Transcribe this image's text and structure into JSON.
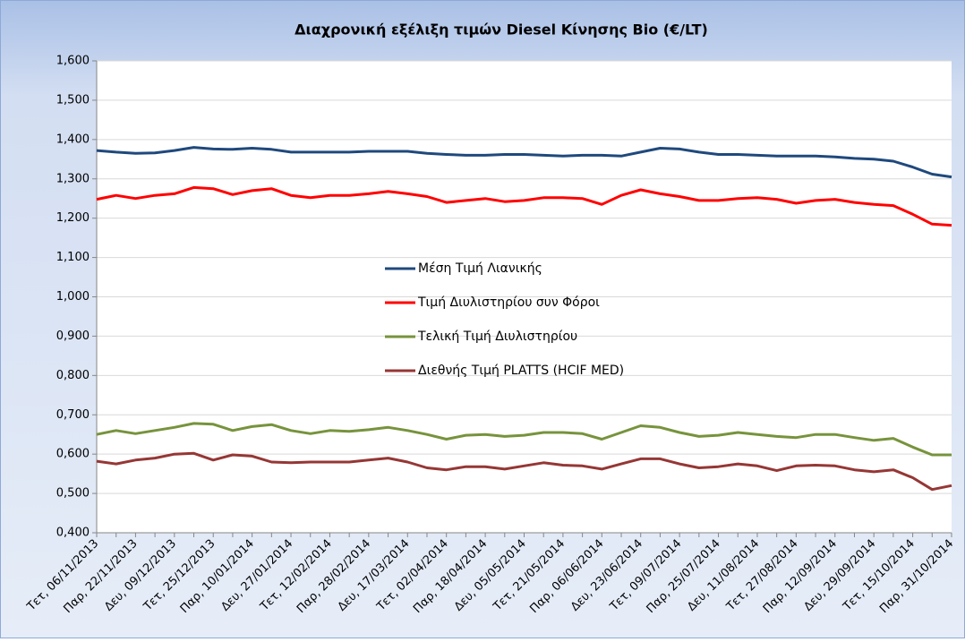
{
  "chart_data": {
    "type": "line",
    "title": "Διαχρονική  εξέλιξη τιμών Diesel Κίνησης Bio (€/LT)",
    "categories": [
      "Τετ, 06/11/2013",
      null,
      "Παρ, 22/11/2013",
      null,
      "Δευ, 09/12/2013",
      null,
      "Τετ, 25/12/2013",
      null,
      "Παρ, 10/01/2014",
      null,
      "Δευ, 27/01/2014",
      null,
      "Τετ, 12/02/2014",
      null,
      "Παρ, 28/02/2014",
      null,
      "Δευ, 17/03/2014",
      null,
      "Τετ, 02/04/2014",
      null,
      "Παρ, 18/04/2014",
      null,
      "Δευ, 05/05/2014",
      null,
      "Τετ, 21/05/2014",
      null,
      "Παρ, 06/06/2014",
      null,
      "Δευ, 23/06/2014",
      null,
      "Τετ, 09/07/2014",
      null,
      "Παρ, 25/07/2014",
      null,
      "Δευ, 11/08/2014",
      null,
      "Τετ, 27/08/2014",
      null,
      "Παρ, 12/09/2014",
      null,
      "Δευ, 29/09/2014",
      null,
      "Τετ, 15/10/2014",
      null,
      "Παρ, 31/10/2014"
    ],
    "series": [
      {
        "name": "Μέση Τιμή Λιανικής",
        "color": "#1f497d",
        "values": [
          1.372,
          1.368,
          1.365,
          1.366,
          1.372,
          1.38,
          1.376,
          1.375,
          1.378,
          1.375,
          1.368,
          1.368,
          1.368,
          1.368,
          1.37,
          1.37,
          1.37,
          1.365,
          1.362,
          1.36,
          1.36,
          1.362,
          1.362,
          1.36,
          1.358,
          1.36,
          1.36,
          1.358,
          1.368,
          1.378,
          1.376,
          1.368,
          1.362,
          1.362,
          1.36,
          1.358,
          1.358,
          1.358,
          1.356,
          1.352,
          1.35,
          1.345,
          1.33,
          1.312,
          1.305
        ]
      },
      {
        "name": "Τιμή Διυλιστηρίου συν Φόροι",
        "color": "#ff0000",
        "values": [
          1.248,
          1.258,
          1.25,
          1.258,
          1.262,
          1.278,
          1.275,
          1.26,
          1.27,
          1.275,
          1.258,
          1.252,
          1.258,
          1.258,
          1.262,
          1.268,
          1.262,
          1.255,
          1.24,
          1.245,
          1.25,
          1.242,
          1.245,
          1.252,
          1.252,
          1.25,
          1.235,
          1.258,
          1.272,
          1.262,
          1.255,
          1.245,
          1.245,
          1.25,
          1.252,
          1.248,
          1.238,
          1.245,
          1.248,
          1.24,
          1.235,
          1.232,
          1.21,
          1.185,
          1.182
        ]
      },
      {
        "name": "Τελική Τιμή Διυλιστηρίου",
        "color": "#77933c",
        "values": [
          0.65,
          0.66,
          0.652,
          0.66,
          0.668,
          0.678,
          0.676,
          0.66,
          0.67,
          0.675,
          0.66,
          0.652,
          0.66,
          0.658,
          0.662,
          0.668,
          0.66,
          0.65,
          0.638,
          0.648,
          0.65,
          0.645,
          0.648,
          0.655,
          0.655,
          0.652,
          0.638,
          0.655,
          0.672,
          0.668,
          0.655,
          0.645,
          0.648,
          0.655,
          0.65,
          0.645,
          0.642,
          0.65,
          0.65,
          0.642,
          0.635,
          0.64,
          0.618,
          0.598,
          0.598
        ]
      },
      {
        "name": "Διεθνής Τιμή PLATTS (HCIF MED)",
        "color": "#953735",
        "values": [
          0.582,
          0.575,
          0.585,
          0.59,
          0.6,
          0.602,
          0.585,
          0.598,
          0.595,
          0.58,
          0.578,
          0.58,
          0.58,
          0.58,
          0.585,
          0.59,
          0.58,
          0.565,
          0.56,
          0.568,
          0.568,
          0.562,
          0.57,
          0.578,
          0.572,
          0.57,
          0.562,
          0.575,
          0.588,
          0.588,
          0.575,
          0.565,
          0.568,
          0.575,
          0.57,
          0.558,
          0.57,
          0.572,
          0.57,
          0.56,
          0.555,
          0.56,
          0.54,
          0.51,
          0.52
        ]
      }
    ],
    "ylim": [
      0.4,
      1.6
    ],
    "yticks": [
      {
        "value": 0.4,
        "label": "0,400"
      },
      {
        "value": 0.5,
        "label": "0,500"
      },
      {
        "value": 0.6,
        "label": "0,600"
      },
      {
        "value": 0.7,
        "label": "0,700"
      },
      {
        "value": 0.8,
        "label": "0,800"
      },
      {
        "value": 0.9,
        "label": "0,900"
      },
      {
        "value": 1.0,
        "label": "1,000"
      },
      {
        "value": 1.1,
        "label": "1,100"
      },
      {
        "value": 1.2,
        "label": "1,200"
      },
      {
        "value": 1.3,
        "label": "1,300"
      },
      {
        "value": 1.4,
        "label": "1,400"
      },
      {
        "value": 1.5,
        "label": "1,500"
      },
      {
        "value": 1.6,
        "label": "1,600"
      }
    ],
    "grid": true,
    "legend": "center"
  }
}
